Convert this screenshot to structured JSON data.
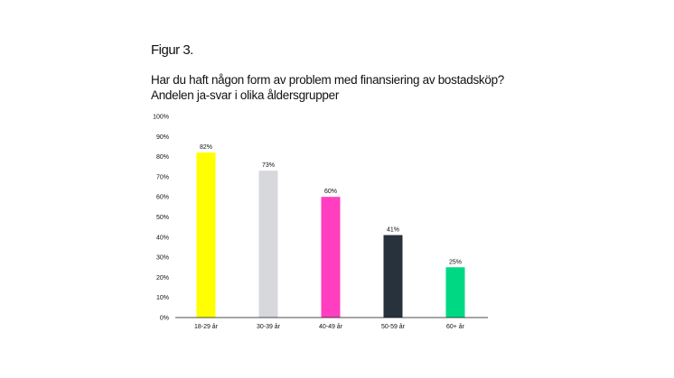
{
  "figure_label": "Figur 3.",
  "title_line1": "Har du haft någon form av problem med finansiering av bostadsköp?",
  "title_line2": "Andelen ja-svar i olika åldersgrupper",
  "chart_data": {
    "type": "bar",
    "title": "Har du haft någon form av problem med finansiering av bostadsköp? Andelen ja-svar i olika åldersgrupper",
    "categories": [
      "18-29 år",
      "30-39 år",
      "40-49 år",
      "50-59 år",
      "60+ år"
    ],
    "values": [
      82,
      73,
      60,
      41,
      25
    ],
    "value_labels": [
      "82%",
      "73%",
      "60%",
      "41%",
      "25%"
    ],
    "colors": [
      "#ffff00",
      "#d7d8dc",
      "#ff3fbf",
      "#27323d",
      "#00d983"
    ],
    "ylim": [
      0,
      100
    ],
    "yticks": [
      "0%",
      "10%",
      "20%",
      "30%",
      "40%",
      "50%",
      "60%",
      "70%",
      "80%",
      "90%",
      "100%"
    ],
    "grid": false,
    "legend": "none"
  }
}
